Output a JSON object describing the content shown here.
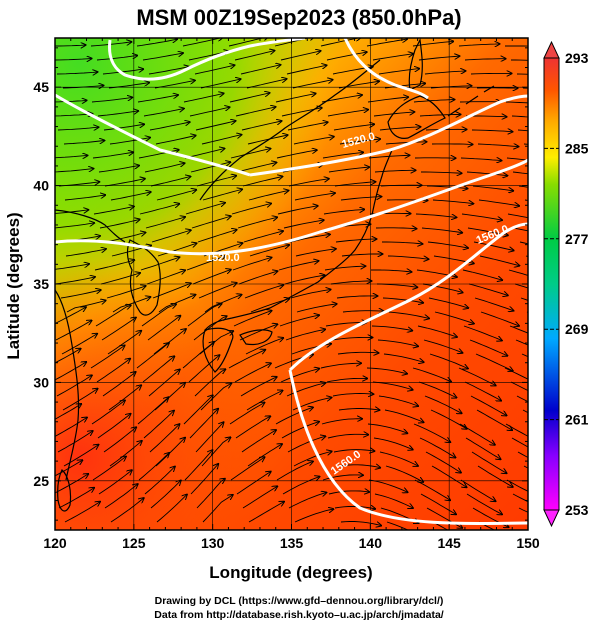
{
  "title": "MSM 00Z19Sep2023 (850.0hPa)",
  "x_axis": {
    "label": "Longitude (degrees)",
    "range": [
      120,
      150
    ],
    "ticks": [
      120,
      125,
      130,
      135,
      140,
      145,
      150
    ]
  },
  "y_axis": {
    "label": "Latitude  (degrees)",
    "range": [
      22.5,
      47.5
    ],
    "ticks": [
      25,
      30,
      35,
      40,
      45
    ]
  },
  "colorbar": {
    "range": [
      253,
      293
    ],
    "ticks": [
      253,
      261,
      269,
      277,
      285,
      293
    ],
    "colors": [
      "#ff00ff",
      "#0000cc",
      "#00aaff",
      "#00cc66",
      "#66dd00",
      "#ffee00",
      "#ff8800",
      "#ff2200",
      "#ee3333"
    ]
  },
  "contours": [
    {
      "label": "1520.0"
    },
    {
      "label": "1560.0"
    },
    {
      "label": "1560.0",
      "label_id": "south"
    },
    {
      "label": "1520.0",
      "label_id": "north"
    }
  ],
  "credits": {
    "line1": "Drawing by DCL (https://www.gfd–dennou.org/library/dcl/)",
    "line2": "Data from http://database.rish.kyoto–u.ac.jp/arch/jmadata/"
  }
}
